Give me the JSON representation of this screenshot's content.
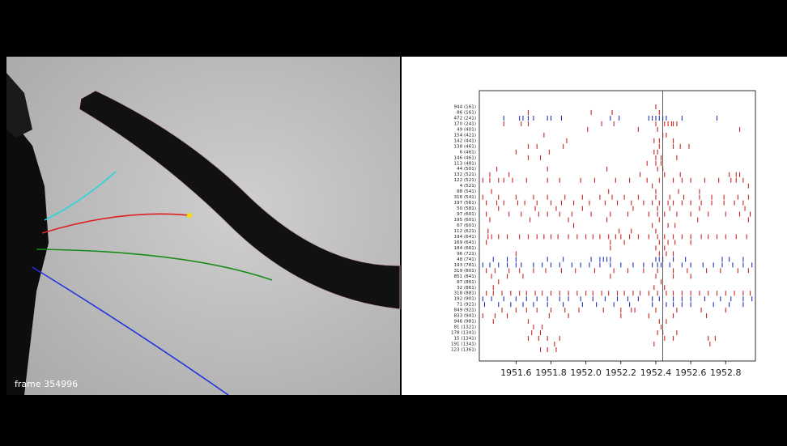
{
  "frame_label": "frame 354996",
  "chart_data": {
    "type": "raster",
    "xlim": [
      1951.39,
      1952.97
    ],
    "xticks": [
      1951.6,
      1951.8,
      {
        "value": 1952,
        "label": "1952.0"
      },
      1952.2,
      1952.4,
      1952.6,
      1952.8
    ],
    "vline": 1952.44,
    "series": [
      {
        "name": "944 (161)",
        "color": "#cc2222",
        "values": [
          1952.4
        ]
      },
      {
        "name": "86 (161)",
        "color": "#cc2222",
        "values": [
          1951.67,
          1952.03,
          1952.15,
          1952.42
        ]
      },
      {
        "name": "472 (241)",
        "color": "#2233bb",
        "values": [
          1951.53,
          1951.62,
          1951.64,
          1951.67,
          1951.7,
          1951.78,
          1951.8,
          1951.86,
          1952.14,
          1952.19,
          1952.36,
          1952.38,
          1952.4,
          1952.42,
          1952.44,
          1952.46,
          1952.55,
          1952.75
        ]
      },
      {
        "name": "170 (241)",
        "color": "#cc2222",
        "values": [
          1951.53,
          1951.63,
          1951.67,
          1952.09,
          1952.16,
          1952.4,
          1952.45,
          1952.47,
          1952.49,
          1952.5,
          1952.52
        ]
      },
      {
        "name": "49 (401)",
        "color": "#cc2222",
        "values": [
          1952.01,
          1952.3,
          1952.41,
          1952.88
        ]
      },
      {
        "name": "154 (421)",
        "color": "#cc2222",
        "values": [
          1951.76,
          1952.44,
          1952.46
        ]
      },
      {
        "name": "142 (441)",
        "color": "#cc2222",
        "values": [
          1951.89,
          1952.39,
          1952.42,
          1952.5
        ]
      },
      {
        "name": "138 (461)",
        "color": "#cc2222",
        "values": [
          1951.67,
          1951.72,
          1951.87,
          1952.42,
          1952.5,
          1952.54,
          1952.59
        ]
      },
      {
        "name": "6 (461)",
        "color": "#cc2222",
        "values": [
          1951.6,
          1951.79,
          1952.39,
          1952.41
        ]
      },
      {
        "name": "146 (461)",
        "color": "#cc2222",
        "values": [
          1951.67,
          1951.74,
          1952.4,
          1952.43,
          1952.52
        ]
      },
      {
        "name": "113 (481)",
        "color": "#cc2222",
        "values": [
          1952.35,
          1952.4,
          1952.43
        ]
      },
      {
        "name": "44 (501)",
        "color": "#cc2222",
        "values": [
          1951.49,
          1951.78,
          1952.12,
          1952.41,
          1952.44
        ]
      },
      {
        "name": "132 (521)",
        "color": "#cc2222",
        "values": [
          1951.45,
          1951.56,
          1952.31,
          1952.45,
          1952.54,
          1952.82,
          1952.86,
          1952.88
        ]
      },
      {
        "name": "122 (521)",
        "color": "#cc2222",
        "values": [
          1951.41,
          1951.45,
          1951.5,
          1951.53,
          1951.58,
          1951.66,
          1951.78,
          1951.85,
          1951.97,
          1952.05,
          1952.17,
          1952.25,
          1952.35,
          1952.42,
          1952.5,
          1952.55,
          1952.6,
          1952.68,
          1952.76,
          1952.83,
          1952.86,
          1952.9
        ]
      },
      {
        "name": "4 (521)",
        "color": "#cc2222",
        "values": [
          1952.38,
          1952.93
        ]
      },
      {
        "name": "88 (541)",
        "color": "#cc2222",
        "values": [
          1951.46,
          1952.13,
          1952.4,
          1952.53,
          1952.65
        ]
      },
      {
        "name": "316 (541)",
        "color": "#cc2222",
        "values": [
          1951.41,
          1951.5,
          1951.6,
          1951.7,
          1951.78,
          1951.88,
          1951.98,
          1952.08,
          1952.15,
          1952.22,
          1952.3,
          1952.4,
          1952.48,
          1952.56,
          1952.65,
          1952.72,
          1952.79,
          1952.87,
          1952.93
        ]
      },
      {
        "name": "197 (561)",
        "color": "#cc2222",
        "values": [
          1951.43,
          1951.49,
          1951.53,
          1951.61,
          1951.65,
          1951.72,
          1951.8,
          1951.86,
          1951.93,
          1952.02,
          1952.11,
          1952.18,
          1952.26,
          1952.33,
          1952.38,
          1952.42,
          1952.47,
          1952.5,
          1952.55,
          1952.6,
          1952.66,
          1952.72,
          1952.79,
          1952.85,
          1952.9
        ]
      },
      {
        "name": "50 (581)",
        "color": "#cc2222",
        "values": [
          1951.5,
          1951.71,
          1951.83,
          1951.98,
          1952.27,
          1952.41,
          1952.48,
          1952.65,
          1952.91
        ]
      },
      {
        "name": "97 (601)",
        "color": "#cc2222",
        "values": [
          1951.43,
          1951.56,
          1951.63,
          1951.73,
          1951.78,
          1951.85,
          1951.92,
          1952.03,
          1952.14,
          1952.24,
          1952.36,
          1952.41,
          1952.45,
          1952.52,
          1952.6,
          1952.7,
          1952.8,
          1952.88,
          1952.94
        ]
      },
      {
        "name": "195 (601)",
        "color": "#cc2222",
        "values": [
          1951.45,
          1951.68,
          1951.9,
          1952.12,
          1952.42,
          1952.64,
          1952.93
        ]
      },
      {
        "name": "67 (601)",
        "color": "#cc2222",
        "values": [
          1951.93,
          1952.38,
          1952.47,
          1952.51
        ]
      },
      {
        "name": "112 (621)",
        "color": "#cc2222",
        "values": [
          1951.44,
          1952.19,
          1952.26,
          1952.4
        ]
      },
      {
        "name": "194 (641)",
        "color": "#cc2222",
        "values": [
          1951.44,
          1951.46,
          1951.5,
          1951.55,
          1951.62,
          1951.67,
          1951.72,
          1951.76,
          1951.8,
          1951.84,
          1951.9,
          1951.95,
          1952,
          1952.04,
          1952.08,
          1952.13,
          1952.17,
          1952.2,
          1952.25,
          1952.3,
          1952.36,
          1952.41,
          1952.45,
          1952.5,
          1952.55,
          1952.6,
          1952.66,
          1952.7,
          1952.75,
          1952.8,
          1952.86,
          1952.92
        ]
      },
      {
        "name": "169 (641)",
        "color": "#cc2222",
        "values": [
          1951.43,
          1952.14,
          1952.22,
          1952.42,
          1952.47,
          1952.51,
          1952.6
        ]
      },
      {
        "name": "184 (661)",
        "color": "#cc2222",
        "values": [
          1952.14,
          1952.4,
          1952.45
        ]
      },
      {
        "name": "96 (721)",
        "color": "#cc2222",
        "values": [
          1951.6,
          1952.42,
          1952.46,
          1952.5
        ]
      },
      {
        "name": "48 (741)",
        "color": "#2233bb",
        "values": [
          1951.47,
          1951.55,
          1951.6,
          1951.78,
          1951.87,
          1952.03,
          1952.08,
          1952.1,
          1952.12,
          1952.14,
          1952.4,
          1952.42,
          1952.44,
          1952.5,
          1952.57,
          1952.78,
          1952.82,
          1952.9
        ]
      },
      {
        "name": "193 (781)",
        "color": "#2233bb",
        "values": [
          1951.41,
          1951.45,
          1951.5,
          1951.55,
          1951.6,
          1951.63,
          1951.7,
          1951.75,
          1951.8,
          1951.85,
          1951.92,
          1951.97,
          1952.02,
          1952.08,
          1952.14,
          1952.2,
          1952.27,
          1952.33,
          1952.38,
          1952.41,
          1952.43,
          1952.48,
          1952.55,
          1952.6,
          1952.67,
          1952.73,
          1952.78,
          1952.84,
          1952.9,
          1952.95
        ]
      },
      {
        "name": "319 (801)",
        "color": "#cc2222",
        "values": [
          1951.43,
          1951.48,
          1951.56,
          1951.62,
          1951.7,
          1951.77,
          1951.86,
          1951.94,
          1952.05,
          1952.16,
          1952.24,
          1952.33,
          1952.41,
          1952.5,
          1952.58,
          1952.69,
          1952.77,
          1952.87,
          1952.93
        ]
      },
      {
        "name": "851 (841)",
        "color": "#cc2222",
        "values": [
          1951.46,
          1951.55,
          1951.64,
          1952.14,
          1952.4,
          1952.5,
          1952.6
        ]
      },
      {
        "name": "87 (861)",
        "color": "#cc2222",
        "values": [
          1951.5,
          1952.43
        ]
      },
      {
        "name": "32 (861)",
        "color": "#cc2222",
        "values": [
          1951.47,
          1952.39,
          1952.45
        ]
      },
      {
        "name": "318 (881)",
        "color": "#cc2222",
        "values": [
          1951.43,
          1951.47,
          1951.52,
          1951.57,
          1951.62,
          1951.66,
          1951.71,
          1951.75,
          1951.8,
          1951.85,
          1951.9,
          1951.95,
          1952,
          1952.04,
          1952.09,
          1952.13,
          1952.18,
          1952.22,
          1952.27,
          1952.31,
          1952.36,
          1952.41,
          1952.46,
          1952.5,
          1952.55,
          1952.6,
          1952.65,
          1952.7,
          1952.75,
          1952.8,
          1952.85,
          1952.9,
          1952.94
        ]
      },
      {
        "name": "192 (901)",
        "color": "#2233bb",
        "values": [
          1951.41,
          1951.46,
          1951.53,
          1951.6,
          1951.66,
          1951.72,
          1951.78,
          1951.85,
          1951.9,
          1951.97,
          1952.04,
          1952.11,
          1952.18,
          1952.24,
          1952.3,
          1952.38,
          1952.42,
          1952.5,
          1952.55,
          1952.6,
          1952.68,
          1952.77,
          1952.83,
          1952.9,
          1952.95
        ]
      },
      {
        "name": "71 (921)",
        "color": "#2233bb",
        "values": [
          1951.42,
          1951.5,
          1951.57,
          1951.64,
          1951.7,
          1951.78,
          1951.87,
          1951.98,
          1952.06,
          1952.16,
          1952.25,
          1952.38,
          1952.46,
          1952.5,
          1952.55,
          1952.6,
          1952.73,
          1952.82,
          1952.9
        ]
      },
      {
        "name": "849 (921)",
        "color": "#cc2222",
        "values": [
          1951.52,
          1951.6,
          1951.66,
          1951.72,
          1951.8,
          1951.88,
          1951.96,
          1952.1,
          1952.2,
          1952.26,
          1952.28,
          1952.4,
          1952.52,
          1952.66,
          1952.8
        ]
      },
      {
        "name": "833 (941)",
        "color": "#cc2222",
        "values": [
          1951.41,
          1951.48,
          1951.55,
          1951.79,
          1951.9,
          1952.2,
          1952.36,
          1952.5,
          1952.69
        ]
      },
      {
        "name": "946 (981)",
        "color": "#cc2222",
        "values": [
          1951.47,
          1951.67,
          1952.42,
          1952.46
        ]
      },
      {
        "name": "81 (1321)",
        "color": "#cc2222",
        "values": [
          1951.7,
          1951.75,
          1952.43
        ]
      },
      {
        "name": "178 (1341)",
        "color": "#cc2222",
        "values": [
          1951.69,
          1951.74,
          1952.41,
          1952.44,
          1952.52
        ]
      },
      {
        "name": "15 (1341)",
        "color": "#cc2222",
        "values": [
          1951.67,
          1951.73,
          1951.78,
          1951.85,
          1952.45,
          1952.5,
          1952.7,
          1952.74
        ]
      },
      {
        "name": "191 (1341)",
        "color": "#cc2222",
        "values": [
          1951.82,
          1952.39,
          1952.71
        ]
      },
      {
        "name": "123 (1361)",
        "color": "#cc2222",
        "values": [
          1951.74,
          1951.78,
          1951.83
        ]
      }
    ]
  }
}
